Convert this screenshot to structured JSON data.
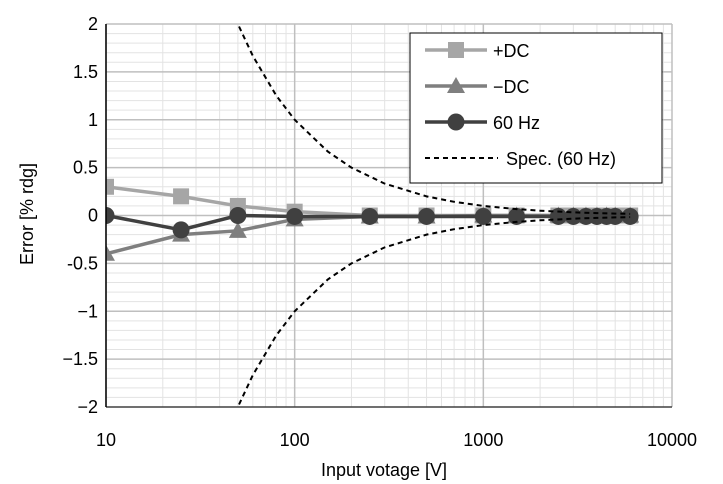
{
  "chart_data": {
    "type": "line",
    "xlabel": "Input votage [V]",
    "ylabel": "Error [% rdg]",
    "xscale": "log",
    "xlim": [
      10,
      10000
    ],
    "ylim": [
      -2,
      2
    ],
    "xticks": [
      "10",
      "100",
      "1000",
      "10000"
    ],
    "yticks": [
      "2",
      "1.5",
      "1",
      "0.5",
      "0",
      "-0.5",
      "−1",
      "−1.5",
      "−2"
    ],
    "grid": true,
    "legend_position": "top-right",
    "series": [
      {
        "name": "+DC",
        "color": "#a6a6a6",
        "marker": "square",
        "x": [
          10,
          25,
          50,
          100,
          250,
          500,
          1000,
          1500,
          2500,
          3000,
          3500,
          4000,
          4500,
          5000,
          6000
        ],
        "y": [
          0.3,
          0.2,
          0.1,
          0.04,
          0.0,
          0.0,
          0.0,
          0.0,
          0.0,
          0.0,
          0.0,
          0.0,
          0.0,
          0.0,
          0.0
        ]
      },
      {
        "name": "−DC",
        "color": "#7f7f7f",
        "marker": "triangle",
        "x": [
          10,
          25,
          50,
          100,
          250,
          500,
          1000,
          1500,
          2500,
          3000,
          3500,
          4000,
          4500,
          5000,
          6000
        ],
        "y": [
          -0.4,
          -0.2,
          -0.16,
          -0.04,
          -0.01,
          -0.01,
          0.0,
          0.0,
          0.0,
          0.0,
          0.0,
          0.0,
          0.0,
          0.0,
          0.0
        ]
      },
      {
        "name": "60 Hz",
        "color": "#404040",
        "marker": "circle",
        "x": [
          10,
          25,
          50,
          100,
          250,
          500,
          1000,
          1500,
          2500,
          3000,
          3500,
          4000,
          4500,
          5000,
          6000
        ],
        "y": [
          0.0,
          -0.15,
          0.0,
          -0.01,
          -0.01,
          -0.01,
          -0.01,
          -0.01,
          -0.01,
          -0.01,
          -0.01,
          -0.01,
          -0.01,
          -0.01,
          -0.01
        ]
      },
      {
        "name": "Spec. (60 Hz)",
        "color": "#000000",
        "dashed": true,
        "x": [
          40,
          50,
          60,
          80,
          100,
          150,
          200,
          300,
          500,
          700,
          1000,
          1500,
          2000,
          3000,
          4000,
          5000,
          6000
        ],
        "y": [
          2.5,
          2.0,
          1.667,
          1.25,
          1.0,
          0.667,
          0.5,
          0.333,
          0.2,
          0.143,
          0.1,
          0.067,
          0.05,
          0.033,
          0.025,
          0.02,
          0.017
        ]
      }
    ]
  }
}
